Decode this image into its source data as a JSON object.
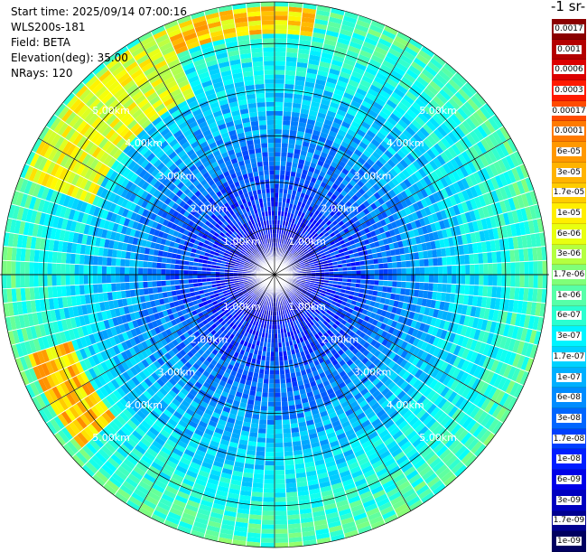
{
  "info": {
    "start_time": "Start time: 2025/09/14 07:00:16",
    "instrument": "WLS200s-181",
    "field": "Field: BETA",
    "elevation": "Elevation(deg): 35.00",
    "nrays": "NRays: 120"
  },
  "unit_label": "-1 sr-",
  "colors": {
    "background": "#ffffff",
    "grid": "#000000",
    "ring_label": "#ffffff",
    "ray_separator": "#ffffff"
  },
  "colorbar": {
    "ticks": [
      "0.0017",
      "0.001",
      "0.0006",
      "0.0003",
      "0.00017",
      "0.0001",
      "6e-05",
      "3e-05",
      "1.7e-05",
      "1e-05",
      "6e-06",
      "3e-06",
      "1.7e-06",
      "1e-06",
      "6e-07",
      "3e-07",
      "1.7e-07",
      "1e-07",
      "6e-08",
      "3e-08",
      "1.7e-08",
      "1e-08",
      "6e-09",
      "3e-09",
      "1.7e-09",
      "1e-09"
    ],
    "colors": [
      "#8b0000",
      "#b40000",
      "#dc0000",
      "#ff1a00",
      "#ff4b00",
      "#ff7a00",
      "#ff9800",
      "#ffb300",
      "#ffcc00",
      "#ffee00",
      "#e8ff10",
      "#b4ff40",
      "#80ff78",
      "#56ffa8",
      "#2affd0",
      "#00f4ff",
      "#00d2ff",
      "#00b0ff",
      "#008cff",
      "#0066ff",
      "#0040ff",
      "#001eff",
      "#0000e8",
      "#0000c0",
      "#000090",
      "#000060"
    ]
  },
  "chart_data": {
    "type": "ppi",
    "field": "BETA",
    "nrays": 120,
    "elevation_deg": 35.0,
    "range_rings_km": [
      1.0,
      2.0,
      3.0,
      4.0,
      5.0
    ],
    "range_ring_labels": [
      "1.00km",
      "2.00km",
      "3.00km",
      "4.00km",
      "5.00km"
    ],
    "max_range_km": 5.9,
    "log10_scale": [
      -9,
      -2.77
    ],
    "grid": true,
    "features": [
      {
        "azimuth_deg_range": [
          290,
          335
        ],
        "range_km": [
          4.2,
          5.8
        ],
        "log10_value": -5.3
      },
      {
        "azimuth_deg_range": [
          228,
          252
        ],
        "range_km": [
          4.6,
          5.6
        ],
        "log10_value": -4.8
      },
      {
        "azimuth_deg_range": [
          335,
          10
        ],
        "range_km": [
          5.2,
          5.8
        ],
        "log10_value": -4.9
      }
    ]
  }
}
